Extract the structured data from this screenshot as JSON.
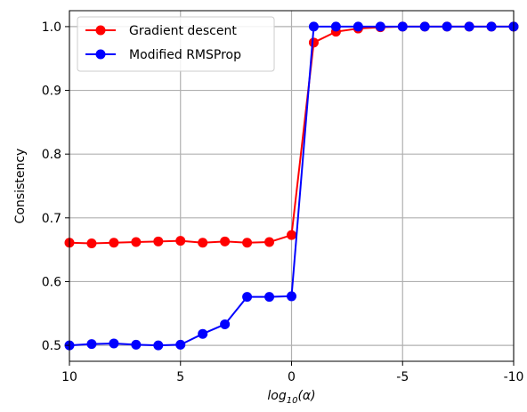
{
  "chart_data": {
    "type": "line",
    "title": "",
    "xlabel_base": "log",
    "xlabel_sub": "10",
    "xlabel_rest": "(α)",
    "ylabel": "Consistency",
    "x_inverted": true,
    "xlim": [
      10,
      -10
    ],
    "ylim": [
      0.475,
      1.025
    ],
    "x": [
      10,
      9,
      8,
      7,
      6,
      5,
      4,
      3,
      2,
      1,
      0,
      -1,
      -2,
      -3,
      -4,
      -5,
      -6,
      -7,
      -8,
      -9,
      -10
    ],
    "xticks": [
      10,
      5,
      0,
      -5,
      -10
    ],
    "xtick_labels": [
      "10",
      "5",
      "0",
      "-5",
      "-10"
    ],
    "yticks": [
      0.5,
      0.6,
      0.7,
      0.8,
      0.9,
      1.0
    ],
    "ytick_labels": [
      "0.5",
      "0.6",
      "0.7",
      "0.8",
      "0.9",
      "1.0"
    ],
    "grid": true,
    "legend_position": "top-left",
    "series": [
      {
        "name": "Gradient descent",
        "color": "#ff0000",
        "values": [
          0.661,
          0.66,
          0.661,
          0.662,
          0.663,
          0.664,
          0.661,
          0.663,
          0.661,
          0.662,
          0.673,
          0.975,
          0.992,
          0.997,
          0.999,
          1.0,
          1.0,
          1.0,
          1.0,
          1.0,
          1.0
        ]
      },
      {
        "name": "Modified RMSProp",
        "color": "#0000ff",
        "values": [
          0.5,
          0.502,
          0.503,
          0.501,
          0.5,
          0.501,
          0.518,
          0.533,
          0.576,
          0.576,
          0.577,
          1.0,
          1.0,
          1.0,
          1.0,
          1.0,
          1.0,
          1.0,
          1.0,
          1.0,
          1.0
        ]
      }
    ]
  }
}
